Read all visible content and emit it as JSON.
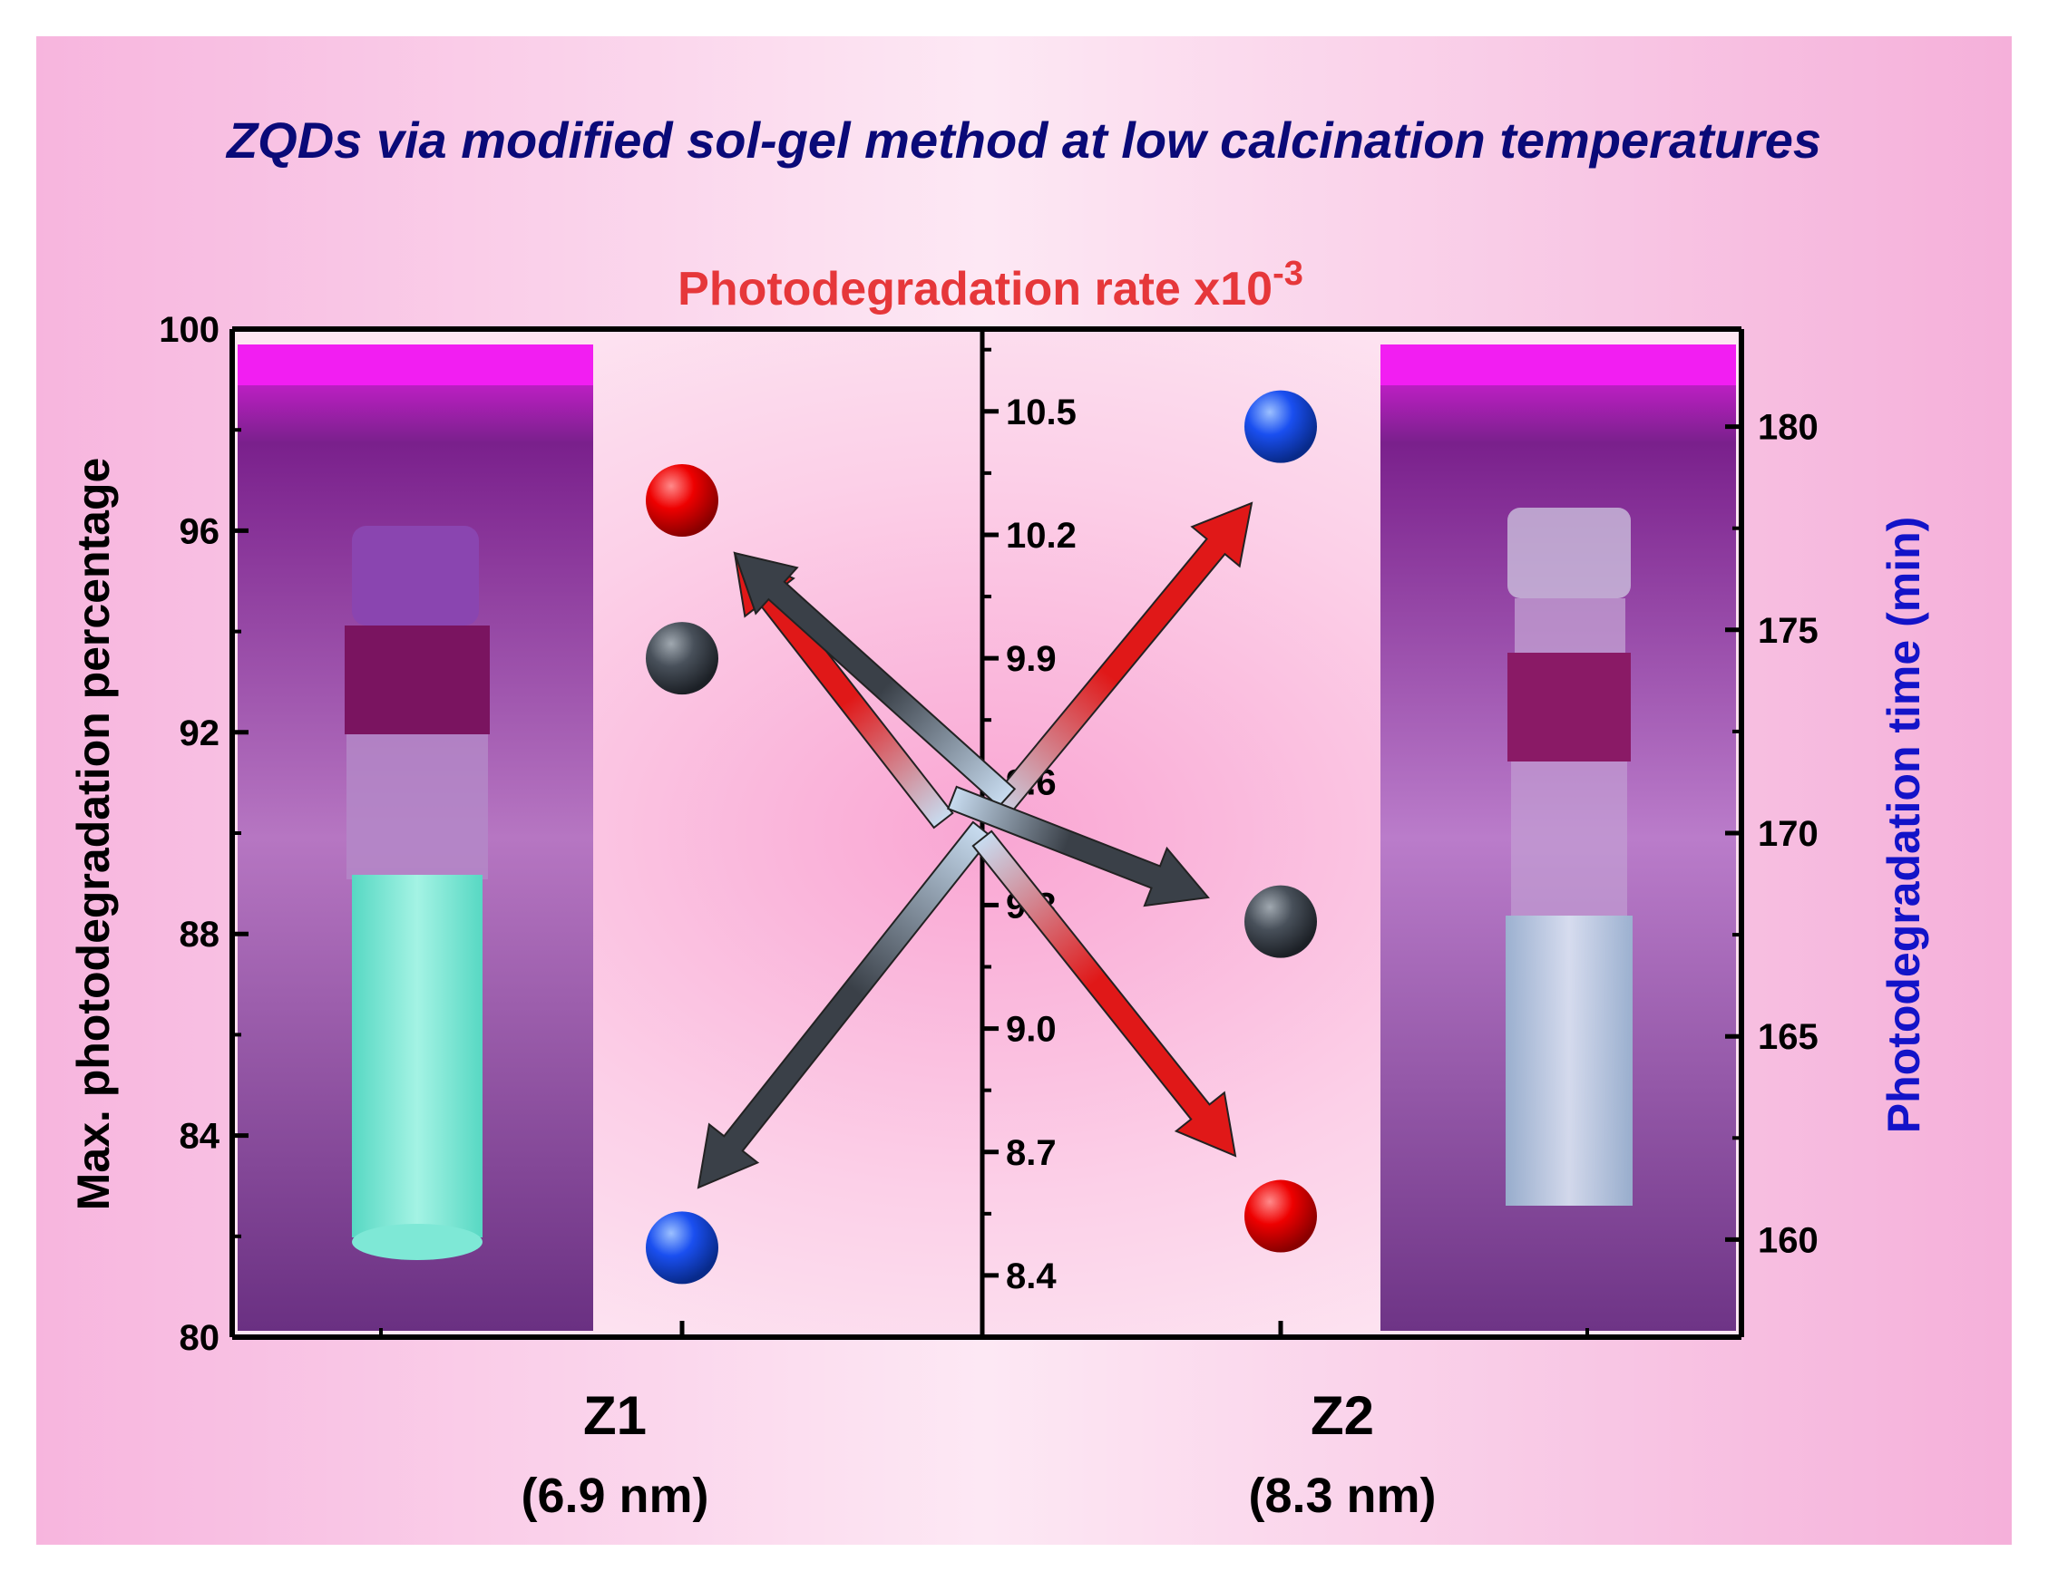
{
  "chart_data": {
    "type": "scatter",
    "title": "ZQDs via modified sol-gel method at low calcination temperatures",
    "top_axis_label": "Photodegradation rate x10",
    "top_axis_exponent": "-3",
    "left_axis": {
      "label": "Max. photodegradation percentage",
      "ylim": [
        80,
        100
      ],
      "ticks": [
        "80",
        "84",
        "88",
        "92",
        "96",
        "100"
      ]
    },
    "middle_axis": {
      "ylim": [
        8.25,
        10.7
      ],
      "ticks": [
        "8.4",
        "8.7",
        "9.0",
        "9.3",
        "9.6",
        "9.9",
        "10.2",
        "10.5"
      ]
    },
    "right_axis": {
      "label": "Photodegradation time (min)",
      "ylim": [
        157.6,
        182.4
      ],
      "ticks": [
        "160",
        "165",
        "170",
        "175",
        "180"
      ]
    },
    "categories": [
      {
        "name": "Z1",
        "sublabel": "(6.9 nm)"
      },
      {
        "name": "Z2",
        "sublabel": "(8.3 nm)"
      }
    ],
    "series": [
      {
        "axis": "left",
        "color": "#e00000",
        "values": [
          96.6,
          82.4
        ]
      },
      {
        "axis": "middle",
        "color": "#444a50",
        "values": [
          9.9,
          9.26
        ]
      },
      {
        "axis": "right",
        "color": "#1a4ff0",
        "values": [
          159.8,
          180.0
        ]
      }
    ],
    "arrows": [
      {
        "color": "red",
        "from": [
          0.15,
          0.385
        ],
        "to": [
          0.72,
          0.06
        ]
      },
      {
        "color": "dark",
        "from": [
          0.24,
          0.32
        ],
        "to": [
          0.675,
          0.965
        ]
      },
      {
        "color": "red",
        "from": [
          0.32,
          0.04
        ],
        "to": [
          0.71,
          0.81
        ]
      },
      {
        "color": "dark",
        "from": [
          0.58,
          0.19
        ],
        "to": [
          0.52,
          0.14
        ]
      }
    ]
  },
  "colors": {
    "title": "#0a0a78",
    "rate_label": "#e6373a",
    "time_label": "#1313c8",
    "background_edge": "#f7b5de",
    "background_center": "#fde8f4"
  }
}
